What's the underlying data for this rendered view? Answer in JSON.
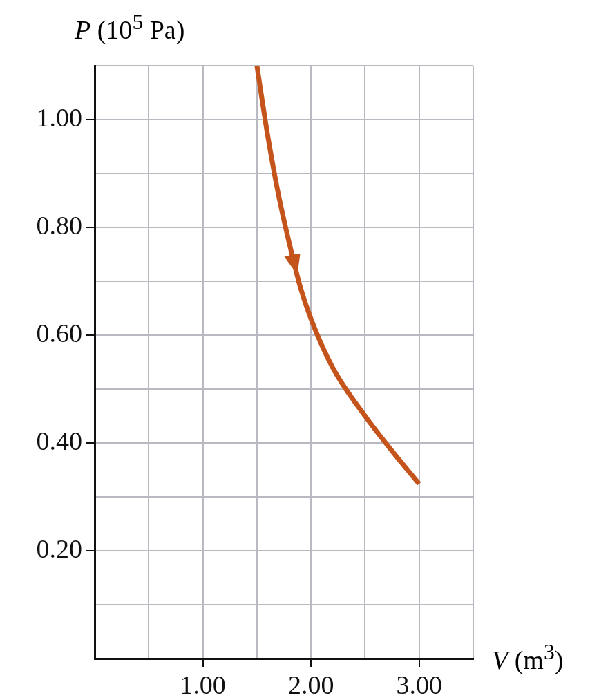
{
  "chart_data": {
    "type": "line",
    "xlabel": "V (m$^{3}$)",
    "ylabel": "P (10$^{5}$ Pa)",
    "x": [
      1.5,
      1.6,
      1.7,
      1.8,
      1.9,
      2.0,
      2.2,
      2.5,
      2.75,
      3.0
    ],
    "series": [
      {
        "color": "#c4541c",
        "values": [
          1.1,
          0.97,
          0.86,
          0.77,
          0.69,
          0.63,
          0.54,
          0.45,
          0.385,
          0.324
        ]
      }
    ],
    "xlim": [
      0,
      3.5
    ],
    "xticks": [
      {
        "value": 0.5,
        "label": null
      },
      {
        "value": 1,
        "label": "1.00"
      },
      {
        "value": 1.5,
        "label": null
      },
      {
        "value": 2,
        "label": "2.00"
      },
      {
        "value": 2.5,
        "label": null
      },
      {
        "value": 3,
        "label": "3.00"
      },
      {
        "value": 3.5,
        "label": null
      }
    ],
    "ylim": [
      0,
      1.1
    ],
    "yticks": [
      {
        "value": 0.1,
        "label": null
      },
      {
        "value": 0.2,
        "label": "0.20"
      },
      {
        "value": 0.3,
        "label": null
      },
      {
        "value": 0.4,
        "label": "0.40"
      },
      {
        "value": 0.5,
        "label": null
      },
      {
        "value": 0.6,
        "label": "0.60"
      },
      {
        "value": 0.7,
        "label": null
      },
      {
        "value": 0.8,
        "label": "0.80"
      },
      {
        "value": 0.9,
        "label": null
      },
      {
        "value": 1.0,
        "label": "1.00"
      },
      {
        "value": 1.1,
        "label": null
      }
    ],
    "grid": true,
    "legend": false,
    "marker": "none",
    "line_style": "solid"
  }
}
